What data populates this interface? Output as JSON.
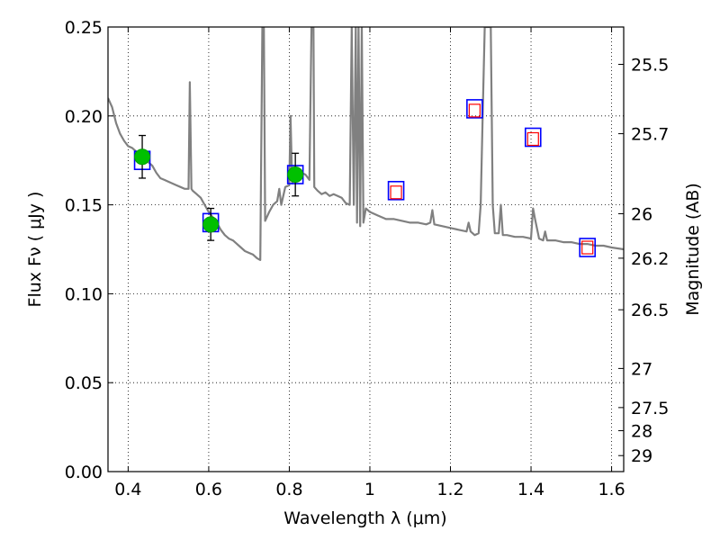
{
  "chart_data": {
    "type": "scatter",
    "title": "",
    "xlabel": "Wavelength  λ (μm)",
    "ylabel": "Flux  Fν  ( μJy )",
    "y2label": "Magnitude (AB)",
    "xlim": [
      0.35,
      1.63
    ],
    "ylim": [
      0.0,
      0.25
    ],
    "grid": true,
    "xticks": [
      0.4,
      0.6,
      0.8,
      1.0,
      1.2,
      1.4,
      1.6
    ],
    "xtick_labels": [
      "0.4",
      "0.6",
      "0.8",
      "1",
      "1.2",
      "1.4",
      "1.6"
    ],
    "yticks": [
      0.0,
      0.05,
      0.1,
      0.15,
      0.2,
      0.25
    ],
    "ytick_labels": [
      "0.00",
      "0.05",
      "0.10",
      "0.15",
      "0.20",
      "0.25"
    ],
    "y2ticks": [
      {
        "label": "25.5",
        "flux": 0.229
      },
      {
        "label": "25.7",
        "flux": 0.19
      },
      {
        "label": "26",
        "flux": 0.145
      },
      {
        "label": "26.2",
        "flux": 0.12
      },
      {
        "label": "26.5",
        "flux": 0.091
      },
      {
        "label": "27",
        "flux": 0.058
      },
      {
        "label": "27.5",
        "flux": 0.036
      },
      {
        "label": "28",
        "flux": 0.023
      },
      {
        "label": "29",
        "flux": 0.009
      }
    ],
    "series": [
      {
        "type": "line",
        "color": "#808080",
        "points": [
          [
            0.35,
            0.21
          ],
          [
            0.36,
            0.205
          ],
          [
            0.37,
            0.196
          ],
          [
            0.38,
            0.19
          ],
          [
            0.39,
            0.186
          ],
          [
            0.4,
            0.183
          ],
          [
            0.41,
            0.182
          ],
          [
            0.42,
            0.18
          ],
          [
            0.43,
            0.178
          ],
          [
            0.44,
            0.176
          ],
          [
            0.45,
            0.174
          ],
          [
            0.46,
            0.172
          ],
          [
            0.47,
            0.168
          ],
          [
            0.48,
            0.165
          ],
          [
            0.49,
            0.164
          ],
          [
            0.5,
            0.163
          ],
          [
            0.51,
            0.162
          ],
          [
            0.52,
            0.161
          ],
          [
            0.53,
            0.16
          ],
          [
            0.54,
            0.159
          ],
          [
            0.55,
            0.159
          ],
          [
            0.553,
            0.219
          ],
          [
            0.557,
            0.159
          ],
          [
            0.56,
            0.158
          ],
          [
            0.57,
            0.156
          ],
          [
            0.58,
            0.154
          ],
          [
            0.59,
            0.15
          ],
          [
            0.6,
            0.146
          ],
          [
            0.61,
            0.143
          ],
          [
            0.62,
            0.14
          ],
          [
            0.63,
            0.136
          ],
          [
            0.64,
            0.133
          ],
          [
            0.65,
            0.131
          ],
          [
            0.66,
            0.13
          ],
          [
            0.67,
            0.128
          ],
          [
            0.68,
            0.126
          ],
          [
            0.69,
            0.124
          ],
          [
            0.7,
            0.123
          ],
          [
            0.71,
            0.122
          ],
          [
            0.72,
            0.12
          ],
          [
            0.728,
            0.119
          ],
          [
            0.733,
            0.25
          ],
          [
            0.737,
            0.25
          ],
          [
            0.74,
            0.141
          ],
          [
            0.75,
            0.146
          ],
          [
            0.76,
            0.15
          ],
          [
            0.77,
            0.152
          ],
          [
            0.775,
            0.159
          ],
          [
            0.78,
            0.15
          ],
          [
            0.79,
            0.16
          ],
          [
            0.8,
            0.161
          ],
          [
            0.803,
            0.2
          ],
          [
            0.807,
            0.162
          ],
          [
            0.81,
            0.164
          ],
          [
            0.82,
            0.166
          ],
          [
            0.83,
            0.168
          ],
          [
            0.84,
            0.167
          ],
          [
            0.85,
            0.164
          ],
          [
            0.855,
            0.25
          ],
          [
            0.86,
            0.25
          ],
          [
            0.862,
            0.16
          ],
          [
            0.87,
            0.158
          ],
          [
            0.88,
            0.156
          ],
          [
            0.89,
            0.157
          ],
          [
            0.9,
            0.155
          ],
          [
            0.91,
            0.156
          ],
          [
            0.92,
            0.155
          ],
          [
            0.93,
            0.154
          ],
          [
            0.94,
            0.151
          ],
          [
            0.95,
            0.15
          ],
          [
            0.955,
            0.25
          ],
          [
            0.96,
            0.15
          ],
          [
            0.965,
            0.25
          ],
          [
            0.968,
            0.14
          ],
          [
            0.972,
            0.25
          ],
          [
            0.976,
            0.138
          ],
          [
            0.98,
            0.25
          ],
          [
            0.984,
            0.14
          ],
          [
            0.99,
            0.148
          ],
          [
            1.0,
            0.146
          ],
          [
            1.02,
            0.144
          ],
          [
            1.04,
            0.142
          ],
          [
            1.06,
            0.142
          ],
          [
            1.08,
            0.141
          ],
          [
            1.1,
            0.14
          ],
          [
            1.12,
            0.14
          ],
          [
            1.14,
            0.139
          ],
          [
            1.15,
            0.14
          ],
          [
            1.155,
            0.147
          ],
          [
            1.16,
            0.139
          ],
          [
            1.18,
            0.138
          ],
          [
            1.2,
            0.137
          ],
          [
            1.22,
            0.136
          ],
          [
            1.24,
            0.135
          ],
          [
            1.245,
            0.14
          ],
          [
            1.25,
            0.135
          ],
          [
            1.26,
            0.133
          ],
          [
            1.27,
            0.134
          ],
          [
            1.275,
            0.15
          ],
          [
            1.28,
            0.2
          ],
          [
            1.285,
            0.25
          ],
          [
            1.3,
            0.25
          ],
          [
            1.305,
            0.15
          ],
          [
            1.31,
            0.134
          ],
          [
            1.32,
            0.134
          ],
          [
            1.325,
            0.15
          ],
          [
            1.33,
            0.133
          ],
          [
            1.34,
            0.133
          ],
          [
            1.36,
            0.132
          ],
          [
            1.38,
            0.132
          ],
          [
            1.4,
            0.131
          ],
          [
            1.405,
            0.148
          ],
          [
            1.41,
            0.142
          ],
          [
            1.42,
            0.131
          ],
          [
            1.43,
            0.13
          ],
          [
            1.435,
            0.135
          ],
          [
            1.44,
            0.13
          ],
          [
            1.46,
            0.13
          ],
          [
            1.48,
            0.129
          ],
          [
            1.5,
            0.129
          ],
          [
            1.52,
            0.128
          ],
          [
            1.54,
            0.128
          ],
          [
            1.56,
            0.127
          ],
          [
            1.58,
            0.127
          ],
          [
            1.6,
            0.126
          ],
          [
            1.63,
            0.125
          ]
        ]
      },
      {
        "type": "open-square",
        "edge_color": "#0000ff",
        "points": [
          [
            0.435,
            0.175
          ],
          [
            0.605,
            0.14
          ],
          [
            0.815,
            0.167
          ],
          [
            1.065,
            0.158
          ],
          [
            1.26,
            0.204
          ],
          [
            1.405,
            0.188
          ],
          [
            1.54,
            0.126
          ]
        ]
      },
      {
        "type": "open-square-small",
        "edge_color": "#ff0000",
        "points": [
          [
            1.065,
            0.157
          ],
          [
            1.26,
            0.203
          ],
          [
            1.405,
            0.187
          ],
          [
            1.54,
            0.126
          ]
        ]
      },
      {
        "type": "filled-circle",
        "color": "#00c000",
        "points": [
          [
            0.435,
            0.177
          ],
          [
            0.605,
            0.139
          ],
          [
            0.815,
            0.167
          ]
        ],
        "yerr": [
          0.012,
          0.009,
          0.012
        ]
      }
    ]
  }
}
